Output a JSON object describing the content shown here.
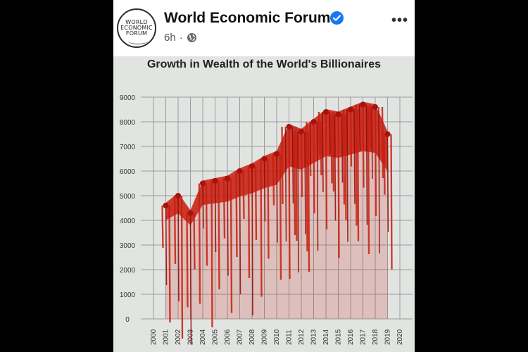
{
  "post": {
    "page_name": "World Economic Forum",
    "avatar_lines": [
      "WORLD",
      "ECONOMIC",
      "FORUM"
    ],
    "time": "6h",
    "separator": "·",
    "verified_icon": "verified-badge-icon",
    "audience_icon": "globe-icon",
    "menu_icon": "more-options-icon",
    "menu_glyph": "•••",
    "accent_color": "#1877f2"
  },
  "chart_data": {
    "type": "area",
    "title": "Growth in Wealth of the World's Billionaires",
    "xlabel": "",
    "ylabel": "",
    "categories": [
      "2000",
      "2001",
      "2002",
      "2003",
      "2004",
      "2005",
      "2006",
      "2007",
      "2008",
      "2009",
      "2010",
      "2011",
      "2012",
      "2013",
      "2014",
      "2015",
      "2016",
      "2017",
      "2018",
      "2019",
      "2020"
    ],
    "y_ticks": [
      0,
      1000,
      2000,
      3000,
      4000,
      5000,
      6000,
      7000,
      8000,
      9000
    ],
    "ylim": [
      0,
      9000
    ],
    "series": [
      {
        "values": [
          null,
          4600,
          5000,
          4300,
          5500,
          5600,
          5700,
          6000,
          6200,
          6500,
          6700,
          7800,
          7600,
          8000,
          8400,
          8300,
          8500,
          8700,
          8600,
          7500,
          null
        ]
      }
    ],
    "grid": true,
    "fill_color": "#c81e10"
  }
}
